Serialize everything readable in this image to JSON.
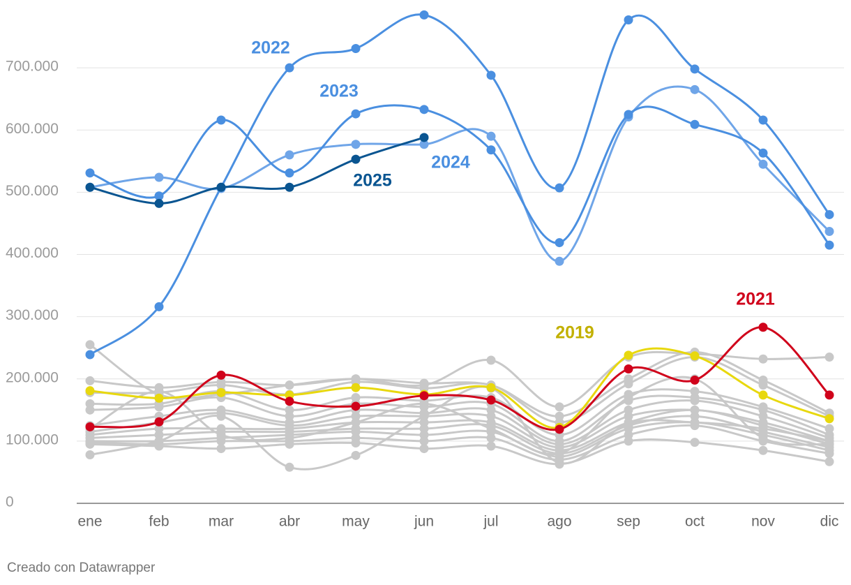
{
  "chart_data": {
    "type": "line",
    "categories": [
      "ene",
      "feb",
      "mar",
      "abr",
      "may",
      "jun",
      "jul",
      "ago",
      "sep",
      "oct",
      "nov",
      "dic"
    ],
    "ylim": [
      0,
      800000
    ],
    "yticks": [
      0,
      {
        "value": 100000,
        "label": "100.000"
      },
      {
        "value": 200000,
        "label": "200.000"
      },
      {
        "value": 300000,
        "label": "300.000"
      },
      {
        "value": 400000,
        "label": "400.000"
      },
      {
        "value": 500000,
        "label": "500.000"
      },
      {
        "value": 600000,
        "label": "600.000"
      },
      {
        "value": 700000,
        "label": "700.000"
      }
    ],
    "grid": true,
    "series": [
      {
        "color": "#c8c8c8",
        "values": [
          255000,
          175000,
          175000,
          190000,
          200000,
          190000,
          230000,
          155000,
          235000,
          240000,
          232000,
          235000
        ]
      },
      {
        "color": "#c8c8c8",
        "values": [
          197000,
          186000,
          195000,
          190000,
          200000,
          193000,
          190000,
          140000,
          200000,
          243000,
          198000,
          145000
        ]
      },
      {
        "color": "#c8c8c8",
        "values": [
          178000,
          178000,
          190000,
          175000,
          195000,
          185000,
          190000,
          130000,
          192000,
          235000,
          190000,
          140000
        ]
      },
      {
        "color": "#c8c8c8",
        "values": [
          160000,
          160000,
          180000,
          150000,
          170000,
          165000,
          170000,
          110000,
          175000,
          180000,
          155000,
          120000
        ]
      },
      {
        "color": "#c8c8c8",
        "values": [
          150000,
          155000,
          170000,
          140000,
          160000,
          155000,
          160000,
          100000,
          165000,
          170000,
          150000,
          110000
        ]
      },
      {
        "color": "#c8c8c8",
        "values": [
          125000,
          140000,
          150000,
          130000,
          150000,
          145000,
          150000,
          95000,
          150000,
          165000,
          140000,
          105000
        ]
      },
      {
        "color": "#c8c8c8",
        "values": [
          115000,
          130000,
          145000,
          125000,
          140000,
          140000,
          140000,
          90000,
          140000,
          150000,
          130000,
          100000
        ]
      },
      {
        "color": "#c8c8c8",
        "values": [
          110000,
          120000,
          120000,
          120000,
          130000,
          130000,
          130000,
          85000,
          130000,
          150000,
          125000,
          95000
        ]
      },
      {
        "color": "#c8c8c8",
        "values": [
          105000,
          110000,
          115000,
          115000,
          120000,
          120000,
          125000,
          80000,
          125000,
          140000,
          115000,
          90000
        ]
      },
      {
        "color": "#c8c8c8",
        "values": [
          100000,
          100000,
          105000,
          110000,
          115000,
          110000,
          115000,
          75000,
          120000,
          130000,
          110000,
          85000
        ]
      },
      {
        "color": "#c8c8c8",
        "values": [
          98000,
          95000,
          100000,
          100000,
          105000,
          100000,
          105000,
          70000,
          110000,
          125000,
          100000,
          80000
        ]
      },
      {
        "color": "#c8c8c8",
        "values": [
          95000,
          92000,
          88000,
          95000,
          97000,
          88000,
          92000,
          63000,
          100000,
          98000,
          85000,
          67000
        ]
      },
      {
        "color": "#c8c8c8",
        "values": [
          78000,
          100000,
          140000,
          58000,
          77000,
          140000,
          185000,
          65000,
          128000,
          130000,
          120000,
          100000
        ]
      },
      {
        "color": "#c8c8c8",
        "values": [
          120000,
          180000,
          110000,
          105000,
          130000,
          160000,
          120000,
          80000,
          170000,
          200000,
          105000,
          95000
        ]
      },
      {
        "name": "2019",
        "color": "#e8d80e",
        "label_color": "#c2b000",
        "values": [
          181000,
          169000,
          178000,
          174000,
          186000,
          175000,
          186000,
          122000,
          238000,
          237000,
          174000,
          136000
        ]
      },
      {
        "name": "2021",
        "color": "#d0021b",
        "values": [
          123000,
          131000,
          206000,
          164000,
          156000,
          173000,
          166000,
          119000,
          216000,
          198000,
          283000,
          174000
        ]
      },
      {
        "name": "2024",
        "color": "#6fa5e8",
        "label_color": "#4a8fe0",
        "values": [
          508000,
          524000,
          506000,
          560000,
          577000,
          577000,
          590000,
          389000,
          621000,
          665000,
          545000,
          437000
        ]
      },
      {
        "name": "2023",
        "color": "#4a8fe0",
        "values": [
          531000,
          494000,
          616000,
          531000,
          626000,
          633000,
          568000,
          419000,
          625000,
          609000,
          563000,
          415000
        ]
      },
      {
        "name": "2022",
        "color": "#4a8fe0",
        "values": [
          239000,
          316000,
          508000,
          700000,
          731000,
          785000,
          688000,
          507000,
          777000,
          698000,
          616000,
          464000
        ]
      },
      {
        "name": "2025",
        "color": "#0a5591",
        "values": [
          508000,
          482000,
          508000,
          508000,
          553000,
          588000,
          null,
          null,
          null,
          null,
          null,
          null
        ]
      }
    ],
    "source": "Creado con Datawrapper"
  }
}
